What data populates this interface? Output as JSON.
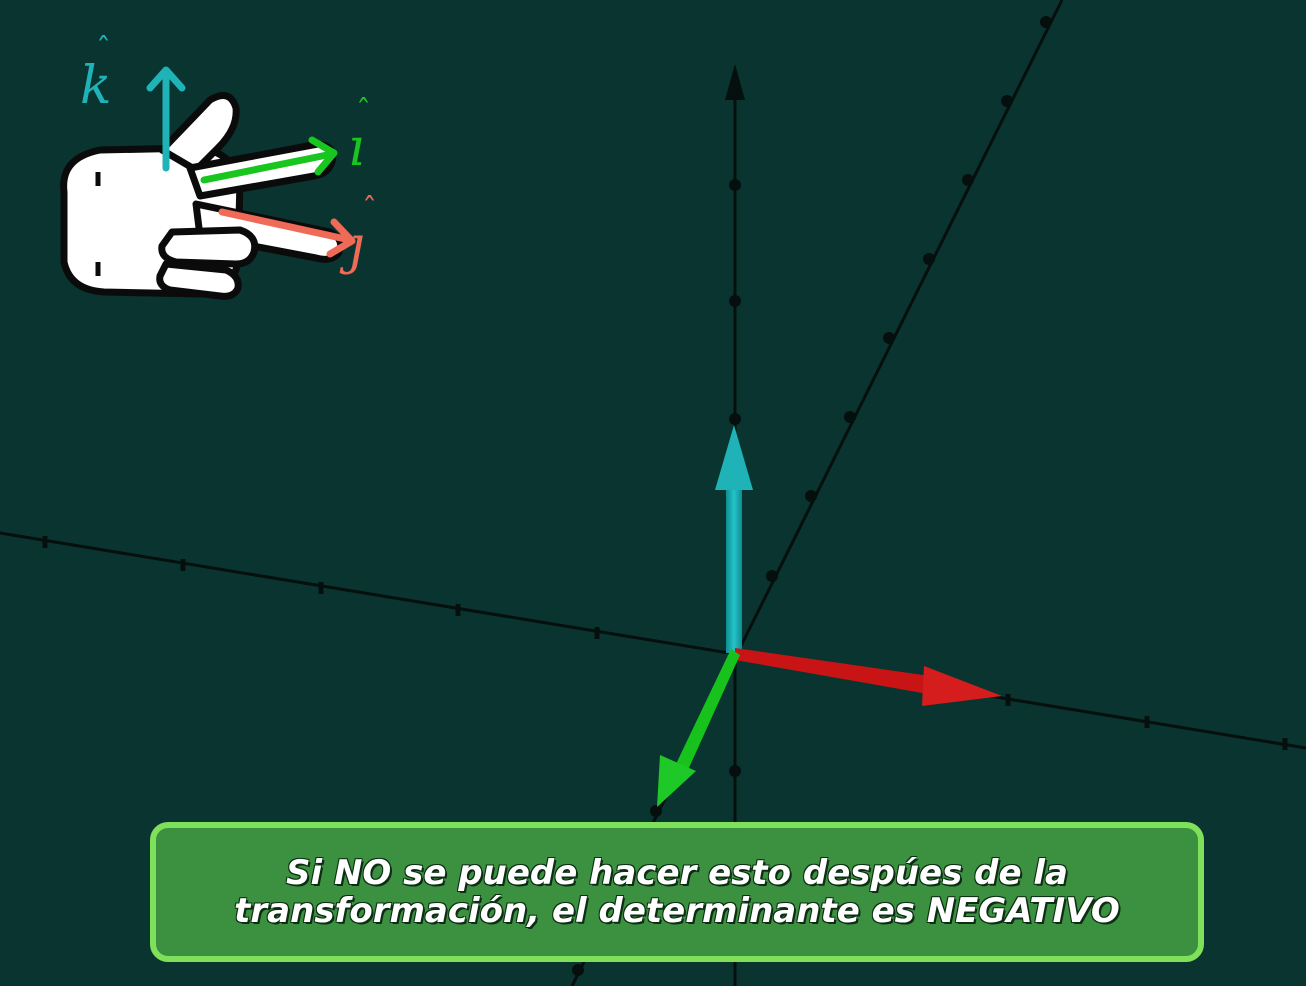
{
  "colors": {
    "background": "#0a3430",
    "axis": "#050f0d",
    "k_vector": "#1fb3b8",
    "i_vector": "#19c51f",
    "j_vector": "#f06a58",
    "red_vector": "#d01818",
    "caption_bg": "#3b913f",
    "caption_border": "#7fe15a"
  },
  "diagram": {
    "vectors": [
      {
        "name": "cyan-up-vector",
        "color": "#1fb3b8"
      },
      {
        "name": "red-right-vector",
        "color": "#d01818"
      },
      {
        "name": "green-down-vector",
        "color": "#19c51f"
      }
    ]
  },
  "hand_icon": {
    "name": "right-hand-rule-icon",
    "labels": {
      "k": "k",
      "i": "ı",
      "j": "ȷ"
    }
  },
  "caption": {
    "line1": "Si NO se puede hacer esto despúes de la",
    "line2": "transformación, el determinante es NEGATIVO"
  }
}
